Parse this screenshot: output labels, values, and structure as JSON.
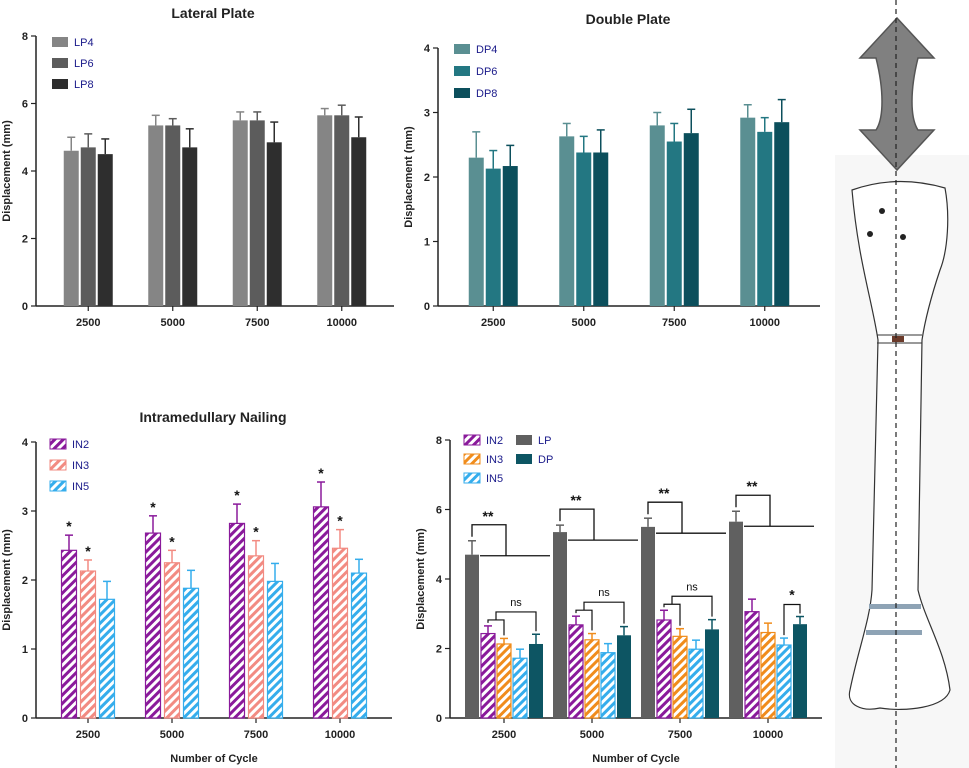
{
  "colors": {
    "LP4": "#858585",
    "LP6": "#5c5c5c",
    "LP8": "#2e2e2e",
    "DP4": "#5a8f92",
    "DP6": "#237782",
    "DP8": "#0c4f5c",
    "IN2": "#8a1a9b",
    "IN3": "#f28b82",
    "IN5": "#35adec",
    "LP": "#606060",
    "DP": "#0d5563",
    "IN3_cmp": "#f08c1c"
  },
  "chart_data": [
    {
      "id": "lateral",
      "type": "bar",
      "title": "Lateral Plate",
      "xlabel": "",
      "ylabel": "Displacement (mm)",
      "ylim": [
        0,
        8
      ],
      "yticks": [
        "0",
        "2",
        "4",
        "6",
        "8"
      ],
      "categories": [
        "2500",
        "5000",
        "7500",
        "10000"
      ],
      "legend_position": "top-left",
      "series": [
        {
          "name": "LP4",
          "color_key": "LP4",
          "values": [
            4.6,
            5.35,
            5.5,
            5.65
          ],
          "errors": [
            0.4,
            0.3,
            0.25,
            0.2
          ]
        },
        {
          "name": "LP6",
          "color_key": "LP6",
          "values": [
            4.7,
            5.35,
            5.5,
            5.65
          ],
          "errors": [
            0.4,
            0.2,
            0.25,
            0.3
          ]
        },
        {
          "name": "LP8",
          "color_key": "LP8",
          "values": [
            4.5,
            4.7,
            4.85,
            5.0
          ],
          "errors": [
            0.45,
            0.55,
            0.6,
            0.6
          ]
        }
      ]
    },
    {
      "id": "double",
      "type": "bar",
      "title": "Double Plate",
      "xlabel": "",
      "ylabel": "Displacement (mm)",
      "ylim": [
        0,
        4
      ],
      "yticks": [
        "0",
        "1",
        "2",
        "3",
        "4"
      ],
      "categories": [
        "2500",
        "5000",
        "7500",
        "10000"
      ],
      "legend_position": "top-left",
      "series": [
        {
          "name": "DP4",
          "color_key": "DP4",
          "values": [
            2.3,
            2.63,
            2.8,
            2.92
          ],
          "errors": [
            0.4,
            0.2,
            0.2,
            0.2
          ]
        },
        {
          "name": "DP6",
          "color_key": "DP6",
          "values": [
            2.13,
            2.38,
            2.55,
            2.7
          ],
          "errors": [
            0.28,
            0.25,
            0.28,
            0.22
          ]
        },
        {
          "name": "DP8",
          "color_key": "DP8",
          "values": [
            2.17,
            2.38,
            2.68,
            2.85
          ],
          "errors": [
            0.32,
            0.35,
            0.37,
            0.35
          ]
        }
      ]
    },
    {
      "id": "nailing",
      "type": "bar",
      "title": "Intramedullary Nailing",
      "xlabel": "Number of Cycle",
      "ylabel": "Displacement (mm)",
      "ylim": [
        0,
        4
      ],
      "yticks": [
        "0",
        "1",
        "2",
        "3",
        "4"
      ],
      "categories": [
        "2500",
        "5000",
        "7500",
        "10000"
      ],
      "legend_position": "top-left",
      "series": [
        {
          "name": "IN2",
          "color_key": "IN2",
          "hatched": true,
          "values": [
            2.43,
            2.68,
            2.82,
            3.06
          ],
          "errors": [
            0.22,
            0.25,
            0.28,
            0.36
          ],
          "marks": [
            "*",
            "*",
            "*",
            "*"
          ]
        },
        {
          "name": "IN3",
          "color_key": "IN3",
          "hatched": true,
          "values": [
            2.13,
            2.25,
            2.35,
            2.46
          ],
          "errors": [
            0.16,
            0.18,
            0.22,
            0.27
          ],
          "marks": [
            "*",
            "*",
            "*",
            "*"
          ]
        },
        {
          "name": "IN5",
          "color_key": "IN5",
          "hatched": true,
          "values": [
            1.72,
            1.88,
            1.98,
            2.1
          ],
          "errors": [
            0.26,
            0.26,
            0.26,
            0.2
          ],
          "marks": [
            "",
            "",
            "",
            ""
          ]
        }
      ]
    },
    {
      "id": "comparison",
      "type": "bar",
      "title": "",
      "xlabel": "Number of Cycle",
      "ylabel": "Displacement (mm)",
      "ylim": [
        0,
        8
      ],
      "yticks": [
        "0",
        "2",
        "4",
        "6",
        "8"
      ],
      "categories": [
        "2500",
        "5000",
        "7500",
        "10000"
      ],
      "legend_position": "top-left",
      "series": [
        {
          "name": "LP",
          "color_key": "LP",
          "values": [
            4.7,
            5.35,
            5.5,
            5.65
          ],
          "errors": [
            0.4,
            0.2,
            0.25,
            0.3
          ]
        },
        {
          "name": "IN2",
          "color_key": "IN2",
          "hatched": true,
          "values": [
            2.43,
            2.68,
            2.82,
            3.06
          ],
          "errors": [
            0.22,
            0.25,
            0.28,
            0.36
          ]
        },
        {
          "name": "IN3",
          "color_key": "IN3_cmp",
          "hatched": true,
          "values": [
            2.13,
            2.25,
            2.35,
            2.46
          ],
          "errors": [
            0.16,
            0.18,
            0.22,
            0.27
          ]
        },
        {
          "name": "IN5",
          "color_key": "IN5",
          "hatched": true,
          "values": [
            1.72,
            1.88,
            1.98,
            2.1
          ],
          "errors": [
            0.26,
            0.26,
            0.26,
            0.2
          ]
        },
        {
          "name": "DP",
          "color_key": "DP",
          "values": [
            2.13,
            2.38,
            2.55,
            2.7
          ],
          "errors": [
            0.28,
            0.25,
            0.28,
            0.22
          ]
        }
      ],
      "significance": [
        {
          "label": "**",
          "label_2": "ns"
        },
        {
          "label": "**",
          "label_2": "ns"
        },
        {
          "label": "**",
          "label_2": "ns"
        },
        {
          "label": "**",
          "label_2": "*"
        }
      ]
    }
  ]
}
